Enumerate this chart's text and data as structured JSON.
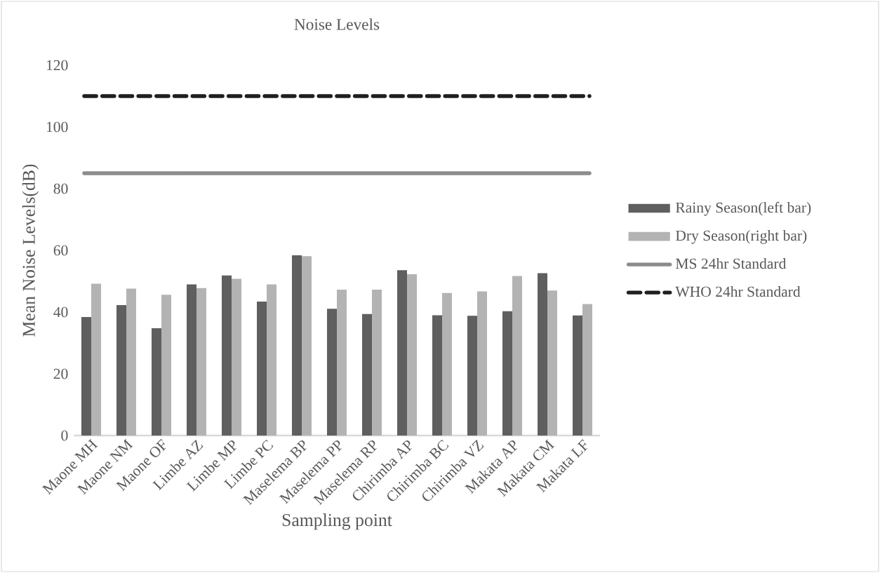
{
  "chart_data": {
    "type": "bar",
    "title": "Noise Levels",
    "xlabel": "Sampling point",
    "ylabel": "Mean Noise Levels(dB)",
    "categories": [
      "Maone MH",
      "Maone NM",
      "Maone OF",
      "Limbe AZ",
      "Limbe MP",
      "Limbe PC",
      "Maselema BP",
      "Maselema PP",
      "Maselema RP",
      "Chirimba AP",
      "Chirimba BC",
      "Chirimba VZ",
      "Makata AP",
      "Makata CM",
      "Makata LF"
    ],
    "series": [
      {
        "name": "Rainy Season(left bar)",
        "color": "#5f5f5f",
        "values": [
          38.4,
          42.3,
          34.8,
          49.0,
          51.9,
          43.4,
          58.4,
          41.1,
          39.4,
          53.6,
          39.0,
          38.8,
          40.3,
          52.6,
          38.9
        ]
      },
      {
        "name": "Dry Season(right bar)",
        "color": "#b3b3b3",
        "values": [
          49.2,
          47.6,
          45.6,
          47.8,
          50.8,
          49.0,
          58.1,
          47.3,
          47.3,
          52.3,
          46.2,
          46.7,
          51.7,
          47.0,
          42.6
        ]
      }
    ],
    "ref_lines": [
      {
        "axis": "y",
        "value": 85,
        "label": "MS 24hr Standard",
        "color": "#8c8c8c",
        "line_style": "solid"
      },
      {
        "axis": "y",
        "value": 110,
        "label": "WHO 24hr Standard",
        "color": "#1f1f1f",
        "line_style": "dashed"
      }
    ],
    "ylim": [
      0,
      120
    ],
    "yticks": [
      0,
      20,
      40,
      60,
      80,
      100,
      120
    ],
    "legend": "right"
  }
}
